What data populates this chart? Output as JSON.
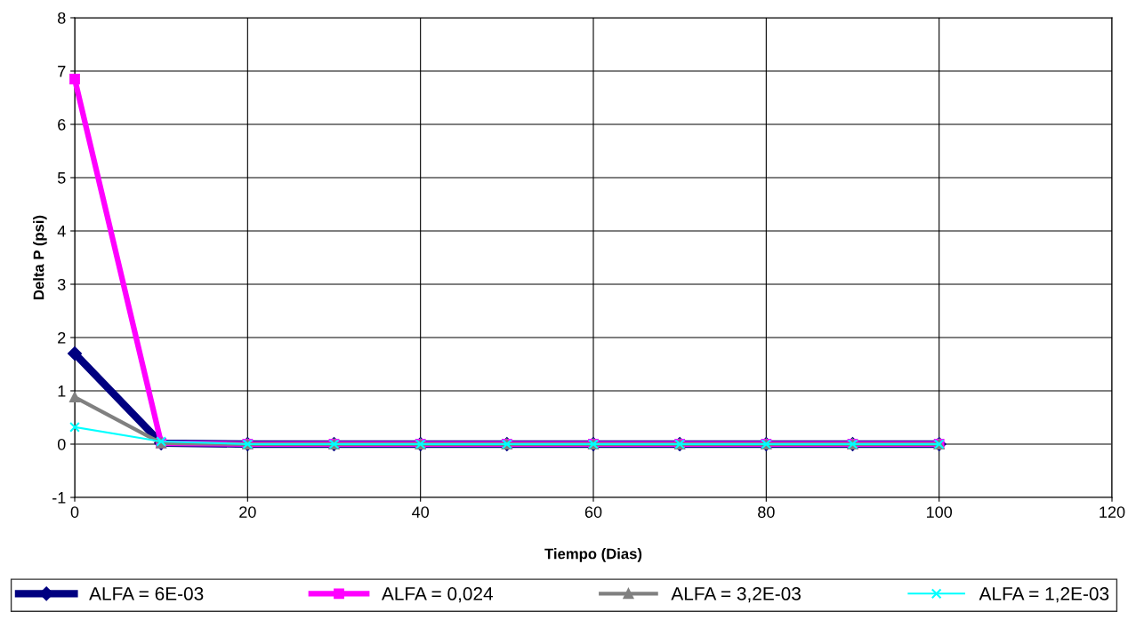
{
  "chart_data": {
    "type": "line",
    "xlabel": "Tiempo (Dias)",
    "ylabel": "Delta P (psi)",
    "x": [
      0,
      10,
      20,
      30,
      40,
      50,
      60,
      70,
      80,
      90,
      100
    ],
    "series": [
      {
        "name": "ALFA = 6E-03",
        "color": "#000080",
        "marker": "diamond",
        "values": [
          1.7,
          0.02,
          0,
          0,
          0,
          0,
          0,
          0,
          0,
          0,
          0
        ]
      },
      {
        "name": "ALFA = 0,024",
        "color": "#ff00ff",
        "marker": "square",
        "values": [
          6.85,
          0.02,
          0,
          0,
          0,
          0,
          0,
          0,
          0,
          0,
          0
        ]
      },
      {
        "name": "ALFA = 3,2E-03",
        "color": "#808080",
        "marker": "triangle",
        "values": [
          0.88,
          0.02,
          0,
          0,
          0,
          0,
          0,
          0,
          0,
          0,
          0
        ]
      },
      {
        "name": "ALFA = 1,2E-03",
        "color": "#00ffff",
        "marker": "cross",
        "values": [
          0.32,
          0.05,
          0,
          0,
          0,
          0,
          0,
          0,
          0,
          0,
          0
        ]
      }
    ],
    "xlim": [
      0,
      120
    ],
    "xticks": [
      0,
      20,
      40,
      60,
      80,
      100,
      120
    ],
    "ylim": [
      -1,
      8
    ],
    "yticks": [
      -1,
      0,
      1,
      2,
      3,
      4,
      5,
      6,
      7,
      8
    ],
    "grid": true,
    "legend": "bottom",
    "line_style": "solid"
  }
}
